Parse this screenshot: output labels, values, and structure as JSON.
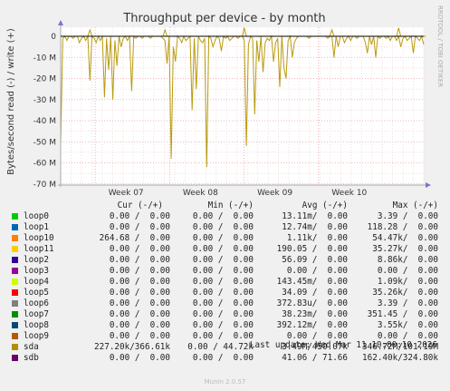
{
  "chart_data": {
    "type": "area",
    "title": "Throughput per device - by month",
    "ylabel": "Bytes/second read (-) / write (+)",
    "ylim": [
      -70000000,
      5000000
    ],
    "yticks": [
      {
        "v": 0,
        "label": "0"
      },
      {
        "v": -10000000,
        "label": "-10 M"
      },
      {
        "v": -20000000,
        "label": "-20 M"
      },
      {
        "v": -30000000,
        "label": "-30 M"
      },
      {
        "v": -40000000,
        "label": "-40 M"
      },
      {
        "v": -50000000,
        "label": "-50 M"
      },
      {
        "v": -60000000,
        "label": "-60 M"
      },
      {
        "v": -70000000,
        "label": "-70 M"
      }
    ],
    "xticks": [
      {
        "v": 0.18,
        "label": "Week 07"
      },
      {
        "v": 0.385,
        "label": "Week 08"
      },
      {
        "v": 0.59,
        "label": "Week 09"
      },
      {
        "v": 0.795,
        "label": "Week 10"
      }
    ],
    "grid": true,
    "series_read_sda": [
      -52,
      -1,
      0,
      -2,
      0,
      0,
      -1,
      0,
      0,
      -3,
      -1,
      0,
      -2,
      0,
      -21,
      0,
      -1,
      -3,
      0,
      -2,
      0,
      -29,
      -1,
      -16,
      0,
      -30,
      -2,
      -14,
      0,
      -5,
      -1,
      0,
      -2,
      0,
      -26,
      0,
      -1,
      0,
      0,
      -1,
      0,
      0,
      0,
      -1,
      0,
      0,
      0,
      0,
      0,
      -1,
      -2,
      -13,
      0,
      -58,
      -5,
      -12,
      0,
      -1,
      -3,
      0,
      -2,
      -1,
      0,
      -35,
      -1,
      -25,
      0,
      -2,
      -3,
      -1,
      -62,
      0,
      -1,
      -5,
      -2,
      0,
      -1,
      -7,
      0,
      -1,
      0,
      -2,
      -1,
      0,
      0,
      -1,
      0,
      0,
      -2,
      -52,
      -4,
      0,
      -1,
      -37,
      -2,
      -12,
      0,
      -17,
      -3,
      -1,
      -2,
      0,
      -12,
      -3,
      -1,
      -24,
      0,
      -15,
      -20,
      -2,
      0,
      -10,
      -3,
      -1,
      0,
      0,
      0,
      0,
      0,
      -1,
      0,
      0,
      0,
      0,
      0,
      0,
      0,
      0,
      -1,
      0,
      0,
      -10,
      0,
      -5,
      0,
      0,
      -3,
      -1,
      0,
      -2,
      0,
      0,
      -1,
      0,
      0,
      0,
      -3,
      -8,
      0,
      -4,
      0,
      -10,
      0,
      -1,
      0,
      0,
      -1,
      0,
      -2,
      0,
      0,
      -2,
      0,
      -5,
      -1,
      0,
      -2,
      -1,
      0,
      -8,
      0,
      -1,
      -2,
      0,
      -4
    ],
    "series_write_sda": [
      0,
      0,
      0,
      0,
      0,
      0,
      0,
      0,
      0,
      0,
      0,
      0,
      0,
      0,
      3,
      0,
      0,
      0,
      0,
      0,
      0,
      0,
      0,
      0,
      0,
      0,
      0,
      0,
      0,
      0,
      0,
      0,
      0,
      0,
      0,
      0,
      0,
      0,
      0,
      0,
      0,
      0,
      0,
      0,
      0,
      0,
      0,
      0,
      0,
      0,
      3,
      0,
      0,
      0,
      0,
      0,
      0,
      0,
      0,
      0,
      0,
      0,
      0,
      0,
      0,
      0,
      0,
      0,
      0,
      0,
      0,
      0,
      0,
      0,
      0,
      0,
      0,
      0,
      0,
      0,
      0,
      0,
      0,
      0,
      0,
      0,
      0,
      0,
      4,
      0,
      0,
      0,
      0,
      0,
      0,
      0,
      0,
      0,
      0,
      0,
      0,
      0,
      0,
      0,
      0,
      0,
      0,
      0,
      0,
      0,
      0,
      0,
      0,
      0,
      0,
      0,
      0,
      0,
      0,
      0,
      0,
      0,
      0,
      0,
      0,
      0,
      0,
      0,
      0,
      0,
      3,
      0,
      0,
      0,
      0,
      0,
      0,
      0,
      0,
      0,
      0,
      0,
      0,
      0,
      0,
      0,
      0,
      0,
      0,
      0,
      0,
      0,
      0,
      0,
      0,
      0,
      0,
      0,
      0,
      0,
      0,
      0,
      4,
      0,
      0,
      0,
      0,
      0,
      0,
      0,
      0,
      0,
      0,
      0,
      0,
      0
    ],
    "series_unit": "M",
    "sda_color": "#b89b0f"
  },
  "side_label": "RRDTOOL / TOBI OETIKER",
  "legend": {
    "headers": {
      "cur": "Cur (-/+)",
      "min": "Min (-/+)",
      "avg": "Avg (-/+)",
      "max": "Max (-/+)"
    },
    "rows": [
      {
        "name": "loop0",
        "color": "#00cc00",
        "cur": "0.00 /  0.00",
        "min": "0.00 /  0.00",
        "avg": "13.11m/  0.00",
        "max": "3.39 /  0.00"
      },
      {
        "name": "loop1",
        "color": "#0066b3",
        "cur": "0.00 /  0.00",
        "min": "0.00 /  0.00",
        "avg": "12.74m/  0.00",
        "max": "118.28 /  0.00"
      },
      {
        "name": "loop10",
        "color": "#ff8000",
        "cur": "264.68 /  0.00",
        "min": "0.00 /  0.00",
        "avg": "1.11k/  0.00",
        "max": "54.47k/  0.00"
      },
      {
        "name": "loop11",
        "color": "#ffcc00",
        "cur": "0.00 /  0.00",
        "min": "0.00 /  0.00",
        "avg": "190.05 /  0.00",
        "max": "35.27k/  0.00"
      },
      {
        "name": "loop2",
        "color": "#330099",
        "cur": "0.00 /  0.00",
        "min": "0.00 /  0.00",
        "avg": "56.09 /  0.00",
        "max": "8.86k/  0.00"
      },
      {
        "name": "loop3",
        "color": "#990099",
        "cur": "0.00 /  0.00",
        "min": "0.00 /  0.00",
        "avg": "0.00 /  0.00",
        "max": "0.00 /  0.00"
      },
      {
        "name": "loop4",
        "color": "#ccff00",
        "cur": "0.00 /  0.00",
        "min": "0.00 /  0.00",
        "avg": "143.45m/  0.00",
        "max": "1.09k/  0.00"
      },
      {
        "name": "loop5",
        "color": "#ff0000",
        "cur": "0.00 /  0.00",
        "min": "0.00 /  0.00",
        "avg": "34.09 /  0.00",
        "max": "35.26k/  0.00"
      },
      {
        "name": "loop6",
        "color": "#808080",
        "cur": "0.00 /  0.00",
        "min": "0.00 /  0.00",
        "avg": "372.83u/  0.00",
        "max": "3.39 /  0.00"
      },
      {
        "name": "loop7",
        "color": "#008f00",
        "cur": "0.00 /  0.00",
        "min": "0.00 /  0.00",
        "avg": "38.23m/  0.00",
        "max": "351.45 /  0.00"
      },
      {
        "name": "loop8",
        "color": "#00487d",
        "cur": "0.00 /  0.00",
        "min": "0.00 /  0.00",
        "avg": "392.12m/  0.00",
        "max": "3.55k/  0.00"
      },
      {
        "name": "loop9",
        "color": "#b35a00",
        "cur": "0.00 /  0.00",
        "min": "0.00 /  0.00",
        "avg": "0.00 /  0.00",
        "max": "0.00 /  0.00"
      },
      {
        "name": "sda",
        "color": "#b38f00",
        "cur": "227.20k/366.61k",
        "min": "0.00 / 44.72k",
        "avg": "3.49M/450.07k",
        "max": "346.72M/101.19M"
      },
      {
        "name": "sdb",
        "color": "#6b006b",
        "cur": "0.00 /  0.00",
        "min": "0.00 /  0.00",
        "avg": "41.06 / 71.66",
        "max": "162.40k/324.80k"
      }
    ]
  },
  "last_update": "Last update: Wed Mar 11 10:00:10 2026",
  "munin_version": "Munin 2.0.57"
}
